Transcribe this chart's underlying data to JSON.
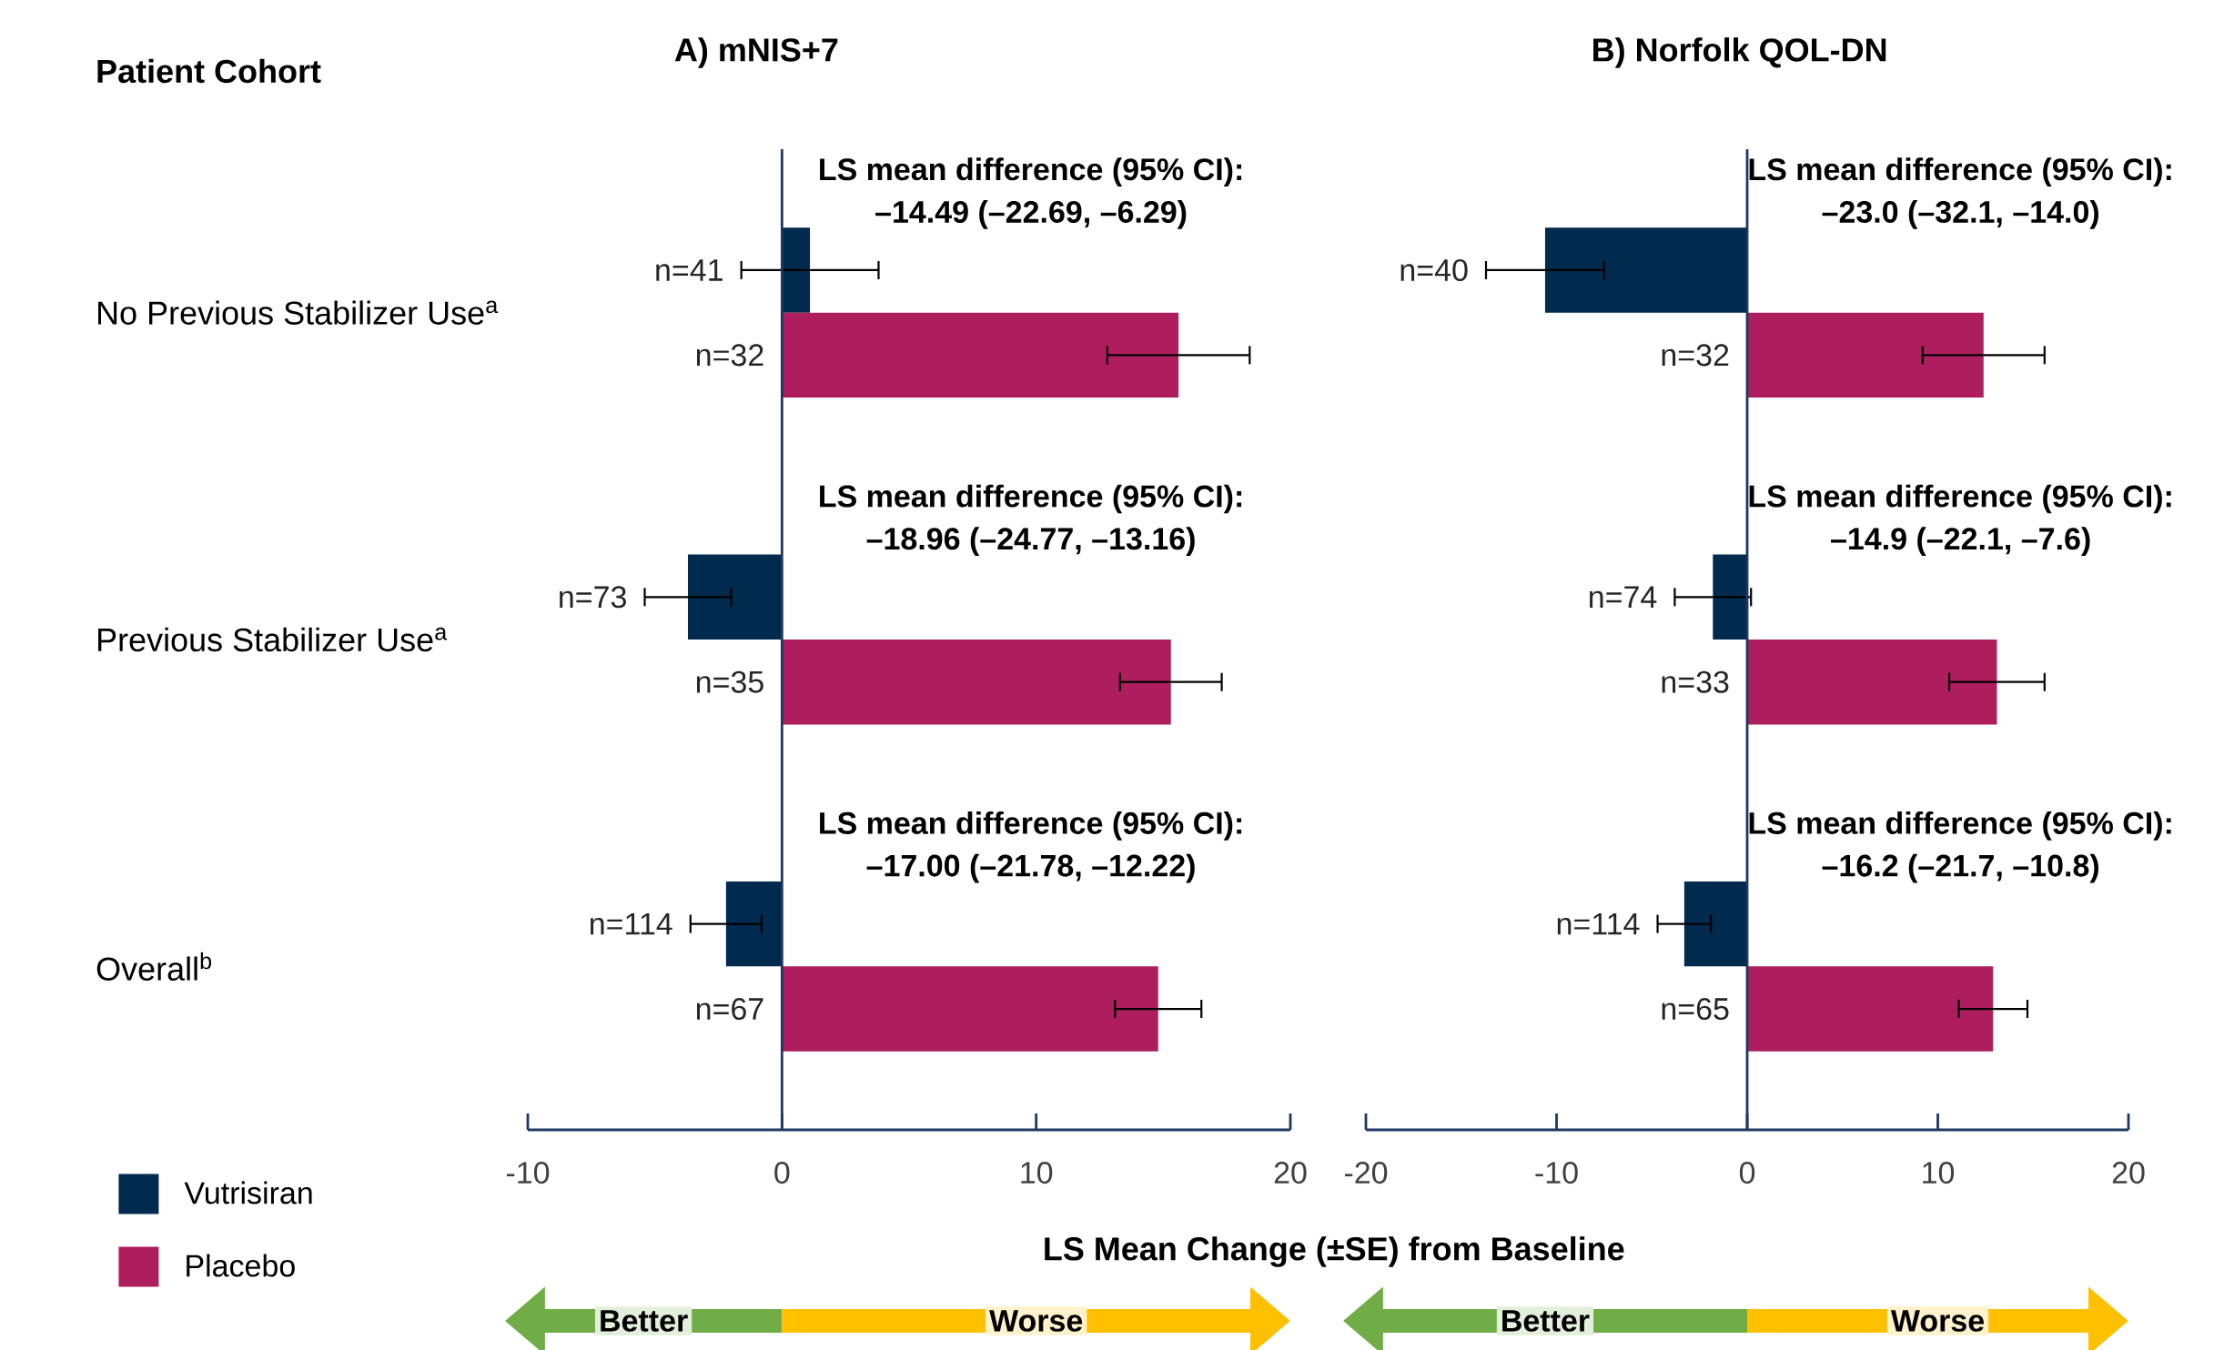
{
  "chart_data": [
    {
      "type": "bar",
      "orientation": "horizontal",
      "title": "A) mNIS+7",
      "ylabel": "Patient Cohort",
      "xlabel": "LS Mean Change (±SE) from Baseline",
      "categories": [
        "No Previous Stabilizer Use$^{a}$",
        "Previous Stabilizer Use$^{a}$",
        "Overall$^{b}$"
      ],
      "xlim": [
        -10,
        20
      ],
      "xticks": [
        -10,
        0,
        10,
        20
      ],
      "legend": "bottom left",
      "series": [
        {
          "name": "Vutrisiran",
          "color": "#002a4e",
          "values": [
            1.1,
            -3.7,
            -2.2
          ],
          "errors": [
            2.7,
            1.7,
            1.4
          ]
        },
        {
          "name": "Placebo",
          "color": "#ae1e5f",
          "values": [
            15.6,
            15.3,
            14.8
          ],
          "errors": [
            2.8,
            2.0,
            1.7
          ]
        }
      ],
      "ref_lines": [
        {
          "axis": "x",
          "value": 0,
          "color": "#1f3864"
        }
      ],
      "annotations": [
        "LS mean difference (95% CI):",
        "–14.49 (–22.69, –6.29)",
        "LS mean difference (95% CI):",
        "–18.96 (–24.77, –13.16)",
        "LS mean difference (95% CI):",
        "–17.00 (–21.78, –12.22)",
        "n=41",
        "n=73",
        "n=114",
        "n=32",
        "n=35",
        "n=67",
        "Better",
        "Worse"
      ]
    },
    {
      "type": "bar",
      "orientation": "horizontal",
      "title": "B) Norfolk QOL-DN",
      "categories": [
        null,
        null,
        null
      ],
      "xlim": [
        -20,
        20
      ],
      "xticks": [
        -20,
        -10,
        0,
        10,
        20
      ],
      "tick_labels": "x",
      "series": [
        {
          "color": "#002a4e",
          "values": [
            -10.6,
            -1.8,
            -3.3
          ],
          "errors": [
            3.1,
            2.0,
            1.4
          ]
        },
        {
          "color": "#ae1e5f",
          "values": [
            12.4,
            13.1,
            12.9
          ],
          "errors": [
            3.2,
            2.5,
            1.8
          ]
        }
      ],
      "ref_lines": [
        {
          "axis": "x",
          "value": 0,
          "color": "#1f3864"
        }
      ],
      "annotations": [
        "LS mean difference (95% CI):",
        "–23.0 (–32.1, –14.0)",
        "LS mean difference (95% CI):",
        "–14.9 (–22.1, –7.6)",
        "LS mean difference (95% CI):",
        "–16.2 (–21.7, –10.8)",
        "n=40",
        "n=74",
        "n=114",
        "n=32",
        "n=33",
        "n=65",
        "Better",
        "Worse"
      ]
    }
  ]
}
